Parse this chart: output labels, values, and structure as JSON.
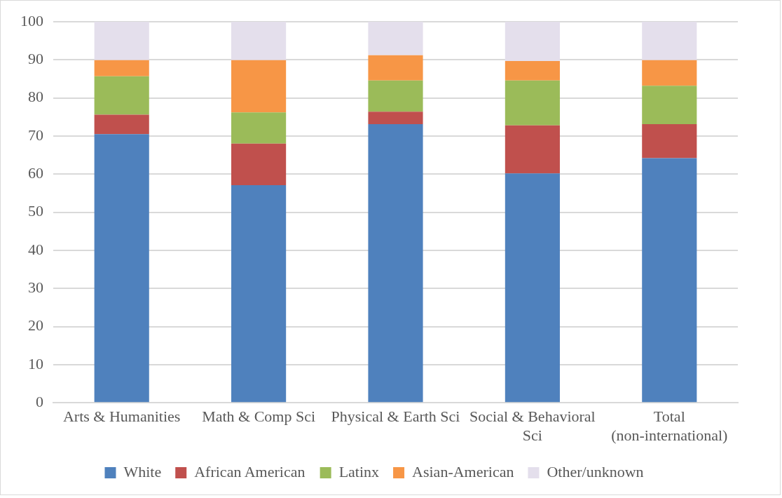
{
  "chart_data": {
    "type": "bar",
    "stacked": true,
    "categories": [
      "Arts & Humanities",
      "Math & Comp Sci",
      "Physical & Earth Sci",
      "Social & Behavioral Sci",
      "Total (non-international)"
    ],
    "series": [
      {
        "name": "White",
        "color": "#4f81bd",
        "values": [
          70.5,
          57.1,
          73.1,
          60.2,
          64.2
        ]
      },
      {
        "name": "African American",
        "color": "#c0504d",
        "values": [
          5.1,
          10.9,
          3.3,
          12.6,
          8.9
        ]
      },
      {
        "name": "Latinx",
        "color": "#9bbb59",
        "values": [
          10.1,
          8.2,
          8.2,
          11.8,
          10.1
        ]
      },
      {
        "name": "Asian-American",
        "color": "#f79646",
        "values": [
          4.2,
          13.7,
          6.6,
          5.1,
          6.7
        ]
      },
      {
        "name": "Other/unknown",
        "color": "#e4dfec",
        "values": [
          10.1,
          10.1,
          8.8,
          10.3,
          10.1
        ]
      }
    ],
    "ylim": [
      0,
      100
    ],
    "yticks": [
      0,
      10,
      20,
      30,
      40,
      50,
      60,
      70,
      80,
      90,
      100
    ],
    "grid": "y",
    "legend": "bottom"
  }
}
